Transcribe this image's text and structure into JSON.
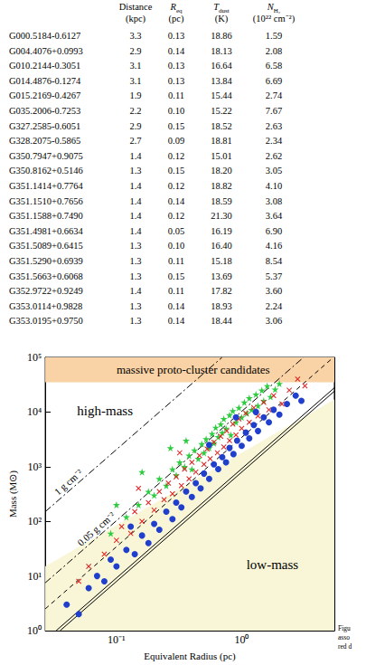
{
  "table": {
    "columns": [
      {
        "symbol": "Distance",
        "unit": "(kpc)"
      },
      {
        "symbol": "R",
        "sub": "eq",
        "unit": "(pc)"
      },
      {
        "symbol": "T",
        "sub": "dust",
        "unit": "(K)"
      },
      {
        "symbol": "N",
        "sub": "H₂",
        "unit": "(10²² cm⁻²)"
      }
    ],
    "rows": [
      [
        "G000.5184-0.6127",
        "3.3",
        "0.13",
        "18.86",
        "1.59"
      ],
      [
        "G004.4076+0.0993",
        "2.9",
        "0.14",
        "18.13",
        "2.08"
      ],
      [
        "G010.2144-0.3051",
        "3.1",
        "0.13",
        "16.64",
        "6.58"
      ],
      [
        "G014.4876-0.1274",
        "3.1",
        "0.13",
        "13.84",
        "6.69"
      ],
      [
        "G015.2169-0.4267",
        "1.9",
        "0.11",
        "15.44",
        "2.74"
      ],
      [
        "G035.2006-0.7253",
        "2.2",
        "0.10",
        "15.22",
        "7.67"
      ],
      [
        "G327.2585-0.6051",
        "2.9",
        "0.15",
        "18.52",
        "2.63"
      ],
      [
        "G328.2075-0.5865",
        "2.7",
        "0.09",
        "18.81",
        "2.34"
      ],
      [
        "G350.7947+0.9075",
        "1.4",
        "0.12",
        "15.01",
        "2.62"
      ],
      [
        "G350.8162+0.5146",
        "1.3",
        "0.15",
        "18.20",
        "3.05"
      ],
      [
        "G351.1414+0.7764",
        "1.4",
        "0.12",
        "18.82",
        "4.10"
      ],
      [
        "G351.1510+0.7656",
        "1.4",
        "0.14",
        "18.59",
        "3.08"
      ],
      [
        "G351.1588+0.7490",
        "1.4",
        "0.12",
        "21.30",
        "3.64"
      ],
      [
        "G351.4981+0.6634",
        "1.4",
        "0.05",
        "16.19",
        "6.90"
      ],
      [
        "G351.5089+0.6415",
        "1.3",
        "0.10",
        "16.40",
        "4.16"
      ],
      [
        "G351.5290+0.6939",
        "1.3",
        "0.11",
        "15.18",
        "8.54"
      ],
      [
        "G351.5663+0.6068",
        "1.3",
        "0.15",
        "13.69",
        "5.37"
      ],
      [
        "G352.9722+0.9249",
        "1.4",
        "0.11",
        "17.82",
        "3.60"
      ],
      [
        "G353.0114+0.9828",
        "1.3",
        "0.14",
        "18.93",
        "2.24"
      ],
      [
        "G353.0195+0.9750",
        "1.3",
        "0.14",
        "18.44",
        "3.06"
      ]
    ]
  },
  "caption": {
    "lines": [
      "Figu",
      "asso",
      "red d"
    ]
  },
  "chart_data": {
    "type": "scatter",
    "x_label": "Equivalent Radius (pc)",
    "y_label": "Mass (M⊙)",
    "log": true,
    "grid": false,
    "xlim": [
      0.027,
      5.5
    ],
    "ylim": [
      1,
      100000
    ],
    "xticks": [
      {
        "value": 0.1,
        "label": "10⁻¹"
      },
      {
        "value": 1,
        "label": "10⁰"
      }
    ],
    "yticks": [
      {
        "value": 1,
        "label": "10⁰"
      },
      {
        "value": 10,
        "label": "10¹"
      },
      {
        "value": 100,
        "label": "10²"
      },
      {
        "value": 1000,
        "label": "10³"
      },
      {
        "value": 10000,
        "label": "10⁴"
      },
      {
        "value": 100000,
        "label": "10⁵"
      }
    ],
    "regions": [
      {
        "text": "massive proto-cluster candidates",
        "color": "#f9d3a6",
        "ylim": [
          35000,
          100000
        ],
        "label_x": 0.41,
        "label_y": 60000
      },
      {
        "color": "#f8f6d6",
        "x": [
          0.027,
          5.5
        ],
        "y": [
          15,
          17000
        ]
      }
    ],
    "annotations": [
      {
        "text": "high-mass",
        "x": 0.081,
        "y": 10700
      },
      {
        "text": "low-mass",
        "x": 1.76,
        "y": 16
      }
    ],
    "lines": [
      {
        "label": "1 g cm⁻²",
        "line_style": "dashdot",
        "color": "#000000",
        "x": [
          0.027,
          0.697
        ],
        "y": [
          150,
          100000
        ],
        "label_x": 0.045
      },
      {
        "label": "0.05 g cm⁻²",
        "line_style": "dashdot",
        "color": "#000000",
        "x": [
          0.027,
          3.12
        ],
        "y": [
          7.5,
          100000
        ],
        "label_x": 0.075
      },
      {
        "line_style": "dashed",
        "color": "#000000",
        "x": [
          0.027,
          5.4
        ],
        "y": [
          2.5,
          100000
        ]
      },
      {
        "line_style": "solid",
        "color": "#000000",
        "x": [
          0.033,
          5.5
        ],
        "y": [
          1,
          27778
        ]
      },
      {
        "line_style": "solid",
        "color": "#000000",
        "x": [
          0.0355,
          5.5
        ],
        "y": [
          1,
          24003
        ]
      }
    ],
    "series": [
      {
        "marker": "star",
        "color": "#2ecc40",
        "values": [
          [
            0.12,
            120
          ],
          [
            0.15,
            200
          ],
          [
            0.18,
            350
          ],
          [
            0.2,
            300
          ],
          [
            0.22,
            600
          ],
          [
            0.25,
            450
          ],
          [
            0.28,
            900
          ],
          [
            0.3,
            700
          ],
          [
            0.32,
            1200
          ],
          [
            0.35,
            1000
          ],
          [
            0.38,
            1600
          ],
          [
            0.4,
            900
          ],
          [
            0.42,
            2000
          ],
          [
            0.45,
            1400
          ],
          [
            0.48,
            2600
          ],
          [
            0.5,
            1800
          ],
          [
            0.52,
            3200
          ],
          [
            0.55,
            2200
          ],
          [
            0.58,
            4000
          ],
          [
            0.6,
            2700
          ],
          [
            0.62,
            5200
          ],
          [
            0.65,
            3500
          ],
          [
            0.68,
            6000
          ],
          [
            0.7,
            4200
          ],
          [
            0.72,
            7500
          ],
          [
            0.75,
            5000
          ],
          [
            0.8,
            8800
          ],
          [
            0.82,
            3800
          ],
          [
            0.85,
            10500
          ],
          [
            0.9,
            6500
          ],
          [
            0.95,
            12000
          ],
          [
            1.0,
            8000
          ],
          [
            1.05,
            15000
          ],
          [
            1.1,
            9500
          ],
          [
            1.15,
            18000
          ],
          [
            1.2,
            11000
          ],
          [
            1.3,
            21000
          ],
          [
            1.35,
            13000
          ],
          [
            1.45,
            25000
          ],
          [
            1.5,
            16000
          ],
          [
            1.6,
            30000
          ],
          [
            1.7,
            19000
          ],
          [
            1.85,
            26000
          ],
          [
            2.0,
            33000
          ],
          [
            0.09,
            60
          ],
          [
            0.1,
            200
          ],
          [
            0.27,
            2200
          ],
          [
            0.36,
            3000
          ],
          [
            0.16,
            800
          ]
        ]
      },
      {
        "marker": "x",
        "color": "#e02020",
        "values": [
          [
            0.06,
            15
          ],
          [
            0.08,
            25
          ],
          [
            0.1,
            45
          ],
          [
            0.11,
            80
          ],
          [
            0.13,
            60
          ],
          [
            0.14,
            150
          ],
          [
            0.16,
            100
          ],
          [
            0.18,
            220
          ],
          [
            0.2,
            160
          ],
          [
            0.22,
            350
          ],
          [
            0.24,
            250
          ],
          [
            0.26,
            500
          ],
          [
            0.28,
            320
          ],
          [
            0.3,
            650
          ],
          [
            0.33,
            450
          ],
          [
            0.35,
            900
          ],
          [
            0.38,
            600
          ],
          [
            0.4,
            1200
          ],
          [
            0.43,
            800
          ],
          [
            0.46,
            1600
          ],
          [
            0.5,
            1100
          ],
          [
            0.53,
            2100
          ],
          [
            0.56,
            1400
          ],
          [
            0.6,
            2800
          ],
          [
            0.64,
            1800
          ],
          [
            0.68,
            3600
          ],
          [
            0.72,
            2300
          ],
          [
            0.76,
            4500
          ],
          [
            0.8,
            3000
          ],
          [
            0.85,
            6000
          ],
          [
            0.9,
            3800
          ],
          [
            0.95,
            7500
          ],
          [
            1.0,
            5000
          ],
          [
            1.08,
            9500
          ],
          [
            1.15,
            6500
          ],
          [
            1.25,
            12000
          ],
          [
            1.35,
            8500
          ],
          [
            1.5,
            15000
          ],
          [
            1.65,
            11000
          ],
          [
            1.8,
            20000
          ],
          [
            2.1,
            14000
          ],
          [
            2.4,
            25000
          ],
          [
            2.8,
            40000
          ],
          [
            0.05,
            8
          ],
          [
            3.2,
            30000
          ],
          [
            0.15,
            400
          ],
          [
            0.32,
            1800
          ]
        ]
      },
      {
        "marker": "circle",
        "color": "#1f3fcc",
        "values": [
          [
            0.04,
            3
          ],
          [
            0.05,
            2
          ],
          [
            0.06,
            6
          ],
          [
            0.07,
            10
          ],
          [
            0.08,
            8
          ],
          [
            0.09,
            20
          ],
          [
            0.1,
            15
          ],
          [
            0.12,
            30
          ],
          [
            0.14,
            25
          ],
          [
            0.16,
            55
          ],
          [
            0.18,
            40
          ],
          [
            0.2,
            90
          ],
          [
            0.22,
            70
          ],
          [
            0.25,
            150
          ],
          [
            0.28,
            110
          ],
          [
            0.3,
            220
          ],
          [
            0.33,
            180
          ],
          [
            0.36,
            350
          ],
          [
            0.4,
            280
          ],
          [
            0.43,
            500
          ],
          [
            0.47,
            400
          ],
          [
            0.5,
            750
          ],
          [
            0.55,
            600
          ],
          [
            0.6,
            1100
          ],
          [
            0.65,
            900
          ],
          [
            0.7,
            1500
          ],
          [
            0.75,
            1200
          ],
          [
            0.8,
            2200
          ],
          [
            0.86,
            1700
          ],
          [
            0.92,
            3000
          ],
          [
            1.0,
            2400
          ],
          [
            1.08,
            4200
          ],
          [
            1.15,
            3300
          ],
          [
            1.25,
            5800
          ],
          [
            1.35,
            4500
          ],
          [
            1.5,
            8000
          ],
          [
            1.65,
            6500
          ],
          [
            1.8,
            11000
          ],
          [
            2.0,
            9000
          ],
          [
            2.3,
            14000
          ],
          [
            2.7,
            20000
          ],
          [
            3.0,
            16000
          ],
          [
            0.9,
            8000
          ],
          [
            0.55,
            2500
          ],
          [
            1.3,
            10000
          ],
          [
            0.13,
            80
          ]
        ]
      }
    ]
  }
}
